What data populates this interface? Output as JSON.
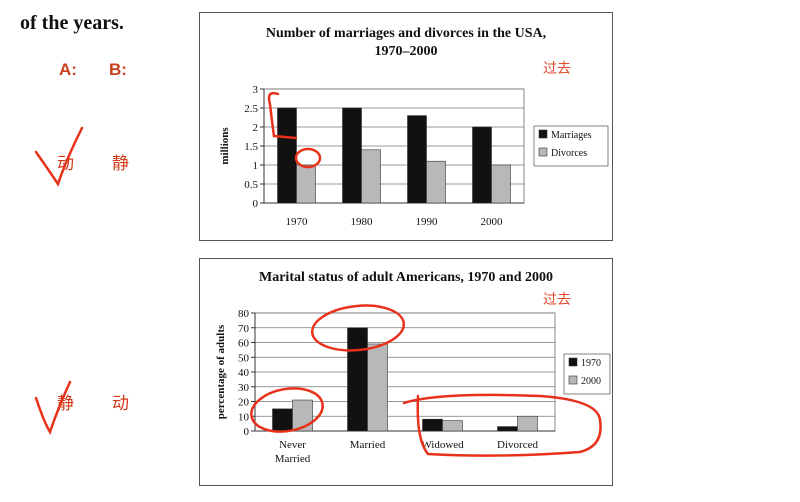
{
  "page": {
    "heading": "of the years.",
    "label_a": "A:",
    "label_b": "B:",
    "left_top": {
      "word1": "动",
      "word2": "静"
    },
    "left_bottom": {
      "word1": "静",
      "word2": "动"
    },
    "note_past_1": "过去",
    "note_past_2": "过去"
  },
  "colors": {
    "series_dark": "#111111",
    "series_light": "#b8b8b8",
    "annotation": "#e8311a",
    "label_orange": "#c8401e"
  },
  "chart_data": [
    {
      "type": "bar",
      "title": "Number of marriages and divorces in the USA,",
      "title_line2": "1970–2000",
      "ylabel": "millions",
      "xlabel": "",
      "categories": [
        "1970",
        "1980",
        "1990",
        "2000"
      ],
      "ylim": [
        0,
        3
      ],
      "yticks": [
        "0",
        "0.5",
        "1",
        "1.5",
        "2",
        "2.5",
        "3"
      ],
      "grid": true,
      "legend_position": "right",
      "series": [
        {
          "name": "Marriages",
          "values": [
            2.5,
            2.5,
            2.3,
            2.0
          ]
        },
        {
          "name": "Divorces",
          "values": [
            1.0,
            1.4,
            1.1,
            1.0
          ]
        }
      ]
    },
    {
      "type": "bar",
      "title": "Marital status of adult Americans, 1970 and 2000",
      "ylabel": "percentage of adults",
      "xlabel": "",
      "categories": [
        "Never Married",
        "Married",
        "Widowed",
        "Divorced"
      ],
      "ylim": [
        0,
        80
      ],
      "yticks": [
        "0",
        "10",
        "20",
        "30",
        "40",
        "50",
        "60",
        "70",
        "80"
      ],
      "grid": true,
      "legend_position": "right",
      "series": [
        {
          "name": "1970",
          "values": [
            15,
            70,
            8,
            3
          ]
        },
        {
          "name": "2000",
          "values": [
            21,
            59,
            7,
            10
          ]
        }
      ]
    }
  ]
}
